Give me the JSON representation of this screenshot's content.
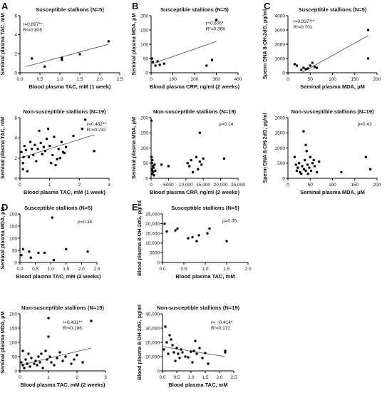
{
  "figure": {
    "panel_letters": [
      "A",
      "B",
      "C",
      "D",
      "E"
    ]
  },
  "chart_data": [
    {
      "id": "A1",
      "type": "scatter",
      "title": "Susceptible stallions (N=5)",
      "xlabel": "Blood plasma TAC, mM (1 week)",
      "ylabel": "Seminal plasma TAC, mM",
      "xlim": [
        0,
        2.5
      ],
      "ylim": [
        0,
        6
      ],
      "xticks": [
        "0.0",
        "0.5",
        "1.0",
        "1.5",
        "2.0",
        "2.5"
      ],
      "yticks": [
        "0",
        "2",
        "4",
        "6"
      ],
      "points": [
        [
          0.3,
          1.5
        ],
        [
          0.62,
          0.65
        ],
        [
          1.05,
          1.55
        ],
        [
          1.05,
          1.35
        ],
        [
          1.5,
          1.95
        ],
        [
          2.22,
          3.3
        ]
      ],
      "trend": [
        [
          0.15,
          0.65
        ],
        [
          2.22,
          3.0
        ]
      ],
      "stats": [
        "r=0.897**",
        "R²=0.805"
      ]
    },
    {
      "id": "A2",
      "type": "scatter",
      "title": "Non-susceptible stallions (N=19)",
      "xlabel": "Blood plasma TAC, mM (1 week)",
      "ylabel": "Seminal plasma TAC, mM",
      "xlim": [
        0,
        3
      ],
      "ylim": [
        0,
        6
      ],
      "xticks": [
        "0",
        "1",
        "2",
        "3"
      ],
      "yticks": [
        "0",
        "2",
        "4",
        "6"
      ],
      "points": [
        [
          0.05,
          2.6
        ],
        [
          0.1,
          1.5
        ],
        [
          0.1,
          0.9
        ],
        [
          0.12,
          2.1
        ],
        [
          0.15,
          3.2
        ],
        [
          0.2,
          2.8
        ],
        [
          0.25,
          0.7
        ],
        [
          0.3,
          2.1
        ],
        [
          0.35,
          3.6
        ],
        [
          0.4,
          2.9
        ],
        [
          0.45,
          2.3
        ],
        [
          0.5,
          3.3
        ],
        [
          0.55,
          1.7
        ],
        [
          0.6,
          2.9
        ],
        [
          0.65,
          4.7
        ],
        [
          0.7,
          3.5
        ],
        [
          0.75,
          2.4
        ],
        [
          0.8,
          3.1
        ],
        [
          0.85,
          2.7
        ],
        [
          0.9,
          3.9
        ],
        [
          0.95,
          4.9
        ],
        [
          1.0,
          3.2
        ],
        [
          1.05,
          1.5
        ],
        [
          1.1,
          2.3
        ],
        [
          1.15,
          4.1
        ],
        [
          1.2,
          1.3
        ],
        [
          1.25,
          1.9
        ],
        [
          1.3,
          2.9
        ],
        [
          1.35,
          2.0
        ],
        [
          1.4,
          3.6
        ],
        [
          1.45,
          2.6
        ],
        [
          1.5,
          2.5
        ],
        [
          1.55,
          3.1
        ],
        [
          1.8,
          4.2
        ],
        [
          2.1,
          4.9
        ],
        [
          2.2,
          5.8
        ],
        [
          2.5,
          2.7
        ]
      ],
      "trend": [
        [
          0.0,
          2.0
        ],
        [
          2.5,
          4.3
        ]
      ],
      "stats": [
        "r=0.482**",
        "R²=0.232"
      ]
    },
    {
      "id": "B1",
      "type": "scatter",
      "title": "Susceptible stallions (N=5)",
      "xlabel": "Blood plasma CRP, ng/ml (2 weeks)",
      "ylabel": "Seminal plasma MDA, μM",
      "xlim": [
        0,
        400
      ],
      "ylim": [
        0,
        200
      ],
      "xticks": [
        "0",
        "100",
        "200",
        "300",
        "400"
      ],
      "yticks": [
        "0",
        "50",
        "100",
        "150",
        "200"
      ],
      "points": [
        [
          5,
          50
        ],
        [
          8,
          38
        ],
        [
          20,
          25
        ],
        [
          30,
          40
        ],
        [
          40,
          28
        ],
        [
          60,
          32
        ],
        [
          255,
          25
        ],
        [
          280,
          45
        ],
        [
          300,
          185
        ]
      ],
      "trend": [
        [
          0,
          30
        ],
        [
          300,
          110
        ]
      ],
      "stats": [
        "r=0.606*",
        "R²=0.368"
      ]
    },
    {
      "id": "B2",
      "type": "scatter",
      "title": "Non-susceptible stallions (N=19)",
      "xlabel": "Blood plasma CRP, ng/ml (2 weeks)",
      "ylabel": "Seminal plasma MDA, μM",
      "xlim": [
        0,
        25000
      ],
      "ylim": [
        0,
        200
      ],
      "xticks": [
        "0",
        "5000",
        "10,000",
        "15,000",
        "20,000",
        "25,000"
      ],
      "yticks": [
        "0",
        "50",
        "100",
        "150",
        "200"
      ],
      "points": [
        [
          100,
          190
        ],
        [
          150,
          70
        ],
        [
          200,
          30
        ],
        [
          250,
          50
        ],
        [
          300,
          15
        ],
        [
          350,
          60
        ],
        [
          400,
          25
        ],
        [
          500,
          40
        ],
        [
          600,
          20
        ],
        [
          700,
          35
        ],
        [
          800,
          10
        ],
        [
          1000,
          45
        ],
        [
          1200,
          25
        ],
        [
          3000,
          45
        ],
        [
          5000,
          40
        ],
        [
          10500,
          50
        ],
        [
          11000,
          40
        ],
        [
          11500,
          60
        ],
        [
          12000,
          20
        ],
        [
          13000,
          70
        ],
        [
          13500,
          30
        ],
        [
          14000,
          55
        ],
        [
          14000,
          150
        ],
        [
          14500,
          45
        ],
        [
          15000,
          65
        ],
        [
          21000,
          65
        ]
      ],
      "stats": [
        "p=0.14"
      ]
    },
    {
      "id": "C1",
      "type": "scatter",
      "title": "Susceptible stallions (N=5)",
      "xlabel": "Seminal plasma MDA, μM",
      "ylabel": "Sperm DNA 8-OH-2dG, pg/ml",
      "xlim": [
        0,
        200
      ],
      "ylim": [
        0,
        4000
      ],
      "xticks": [
        "0",
        "50",
        "100",
        "150",
        "200"
      ],
      "yticks": [
        "0",
        "1000",
        "2000",
        "3000",
        "4000"
      ],
      "points": [
        [
          15,
          600
        ],
        [
          20,
          500
        ],
        [
          30,
          200
        ],
        [
          35,
          350
        ],
        [
          40,
          250
        ],
        [
          45,
          300
        ],
        [
          50,
          500
        ],
        [
          55,
          700
        ],
        [
          60,
          400
        ],
        [
          65,
          350
        ],
        [
          180,
          3000
        ],
        [
          180,
          1000
        ]
      ],
      "trend": [
        [
          30,
          0
        ],
        [
          180,
          2600
        ]
      ],
      "stats": [
        "r=0.837***",
        "R²=0.701"
      ]
    },
    {
      "id": "C2",
      "type": "scatter",
      "title": "Non-susceptible stallions (N=19)",
      "xlabel": "Seminal plasma MDA, μM",
      "ylabel": "Sperm DNA 8-OH-2dG, pg/ml",
      "xlim": [
        0,
        200
      ],
      "ylim": [
        0,
        2000
      ],
      "xticks": [
        "0",
        "50",
        "100",
        "150",
        "200"
      ],
      "yticks": [
        "0",
        "500",
        "1000",
        "1500",
        "2000"
      ],
      "points": [
        [
          15,
          700
        ],
        [
          18,
          450
        ],
        [
          20,
          250
        ],
        [
          22,
          350
        ],
        [
          25,
          500
        ],
        [
          27,
          200
        ],
        [
          30,
          150
        ],
        [
          32,
          400
        ],
        [
          35,
          1550
        ],
        [
          36,
          300
        ],
        [
          38,
          600
        ],
        [
          40,
          1100
        ],
        [
          40,
          250
        ],
        [
          42,
          900
        ],
        [
          44,
          450
        ],
        [
          45,
          150
        ],
        [
          48,
          350
        ],
        [
          50,
          700
        ],
        [
          52,
          250
        ],
        [
          55,
          500
        ],
        [
          58,
          600
        ],
        [
          60,
          400
        ],
        [
          65,
          200
        ],
        [
          70,
          550
        ],
        [
          120,
          200
        ],
        [
          175,
          700
        ],
        [
          185,
          300
        ]
      ],
      "stats": [
        "p=0.43"
      ]
    },
    {
      "id": "D1",
      "type": "scatter",
      "title": "Susceptible stallions (N=5)",
      "xlabel": "Blood plasma TAC, mM (2 weeks)",
      "ylabel": "Seminal plasma MDA, μM",
      "xlim": [
        0,
        2.5
      ],
      "ylim": [
        0,
        200
      ],
      "xticks": [
        "0.0",
        "0.5",
        "1.0",
        "1.5",
        "2.0",
        "2.5"
      ],
      "yticks": [
        "0",
        "50",
        "100",
        "150",
        "200"
      ],
      "points": [
        [
          0.05,
          30
        ],
        [
          0.1,
          55
        ],
        [
          0.3,
          45
        ],
        [
          0.35,
          20
        ],
        [
          0.6,
          40
        ],
        [
          0.8,
          40
        ],
        [
          1.05,
          185
        ],
        [
          1.1,
          10
        ],
        [
          1.5,
          55
        ],
        [
          2.2,
          45
        ]
      ],
      "stats": [
        "p=0.34"
      ]
    },
    {
      "id": "D2",
      "type": "scatter",
      "title": "Non-susceptible stallions (N=19)",
      "xlabel": "Blood plasma TAC, mM (2 weeks)",
      "ylabel": "Seminal plasma MDA, μM",
      "xlim": [
        0,
        3
      ],
      "ylim": [
        0,
        200
      ],
      "xticks": [
        "0",
        "1",
        "2",
        "3"
      ],
      "yticks": [
        "0",
        "50",
        "100",
        "150",
        "200"
      ],
      "points": [
        [
          0.05,
          30
        ],
        [
          0.1,
          20
        ],
        [
          0.1,
          70
        ],
        [
          0.15,
          10
        ],
        [
          0.2,
          40
        ],
        [
          0.25,
          25
        ],
        [
          0.3,
          60
        ],
        [
          0.35,
          15
        ],
        [
          0.4,
          45
        ],
        [
          0.5,
          25
        ],
        [
          0.55,
          35
        ],
        [
          0.6,
          20
        ],
        [
          0.65,
          50
        ],
        [
          0.7,
          30
        ],
        [
          0.75,
          60
        ],
        [
          0.8,
          10
        ],
        [
          0.9,
          70
        ],
        [
          0.95,
          40
        ],
        [
          1.0,
          185
        ],
        [
          1.0,
          120
        ],
        [
          1.05,
          50
        ],
        [
          1.1,
          30
        ],
        [
          1.2,
          20
        ],
        [
          1.3,
          45
        ],
        [
          1.4,
          65
        ],
        [
          1.5,
          35
        ],
        [
          1.6,
          50
        ],
        [
          1.8,
          25
        ],
        [
          1.9,
          40
        ],
        [
          2.0,
          55
        ],
        [
          2.2,
          30
        ],
        [
          2.5,
          175
        ]
      ],
      "trend": [
        [
          0.0,
          20
        ],
        [
          2.5,
          80
        ]
      ],
      "stats": [
        "r=0.431**",
        "R²=0.186"
      ]
    },
    {
      "id": "E1",
      "type": "scatter",
      "title": "Susceptible stallions (N=5)",
      "xlabel": "Blood plasma TAC, mM",
      "ylabel": "Blood plasma 8-OH-2dG, pg/ml",
      "xlim": [
        0,
        2.0
      ],
      "ylim": [
        0,
        25000
      ],
      "xticks": [
        "0.0",
        "0.5",
        "1.0",
        "1.5",
        "2.0"
      ],
      "yticks": [
        "0",
        "5000",
        "10,000",
        "15,000",
        "20,000",
        "25,000"
      ],
      "points": [
        [
          0.05,
          20000
        ],
        [
          0.1,
          16000
        ],
        [
          0.3,
          16500
        ],
        [
          0.35,
          17500
        ],
        [
          0.6,
          12500
        ],
        [
          0.7,
          13000
        ],
        [
          0.8,
          11000
        ],
        [
          0.85,
          14000
        ],
        [
          1.05,
          15000
        ],
        [
          1.1,
          17500
        ],
        [
          1.5,
          11000
        ]
      ],
      "stats": [
        "p=0.05"
      ]
    },
    {
      "id": "E2",
      "type": "scatter",
      "title": "Non-susceptible stallions (N=19)",
      "xlabel": "Blood plasma TAC, mM",
      "ylabel": "Blood plasma 8-OH-2dG, pg/ml",
      "xlim": [
        0,
        2.5
      ],
      "ylim": [
        0,
        40000
      ],
      "xticks": [
        "0.0",
        "0.5",
        "1.0",
        "1.5",
        "2.0",
        "2.5"
      ],
      "yticks": [
        "0",
        "10,000",
        "20,000",
        "30,000",
        "40,000"
      ],
      "points": [
        [
          0.05,
          15000
        ],
        [
          0.1,
          31000
        ],
        [
          0.15,
          20000
        ],
        [
          0.2,
          12000
        ],
        [
          0.25,
          25000
        ],
        [
          0.3,
          22000
        ],
        [
          0.35,
          18000
        ],
        [
          0.4,
          13000
        ],
        [
          0.45,
          7000
        ],
        [
          0.5,
          16000
        ],
        [
          0.55,
          12000
        ],
        [
          0.6,
          9000
        ],
        [
          0.65,
          15000
        ],
        [
          0.7,
          13000
        ],
        [
          0.8,
          10000
        ],
        [
          0.9,
          9500
        ],
        [
          1.0,
          13500
        ],
        [
          1.05,
          6000
        ],
        [
          1.1,
          14000
        ],
        [
          1.15,
          21000
        ],
        [
          1.2,
          12000
        ],
        [
          1.3,
          16000
        ],
        [
          1.4,
          9000
        ],
        [
          1.5,
          12500
        ],
        [
          1.6,
          5000
        ],
        [
          2.2,
          13000
        ],
        [
          2.2,
          14000
        ]
      ],
      "trend": [
        [
          0.0,
          17000
        ],
        [
          2.2,
          10000
        ]
      ],
      "stats": [
        "r= −0.414*",
        "R²=0.171"
      ]
    }
  ]
}
